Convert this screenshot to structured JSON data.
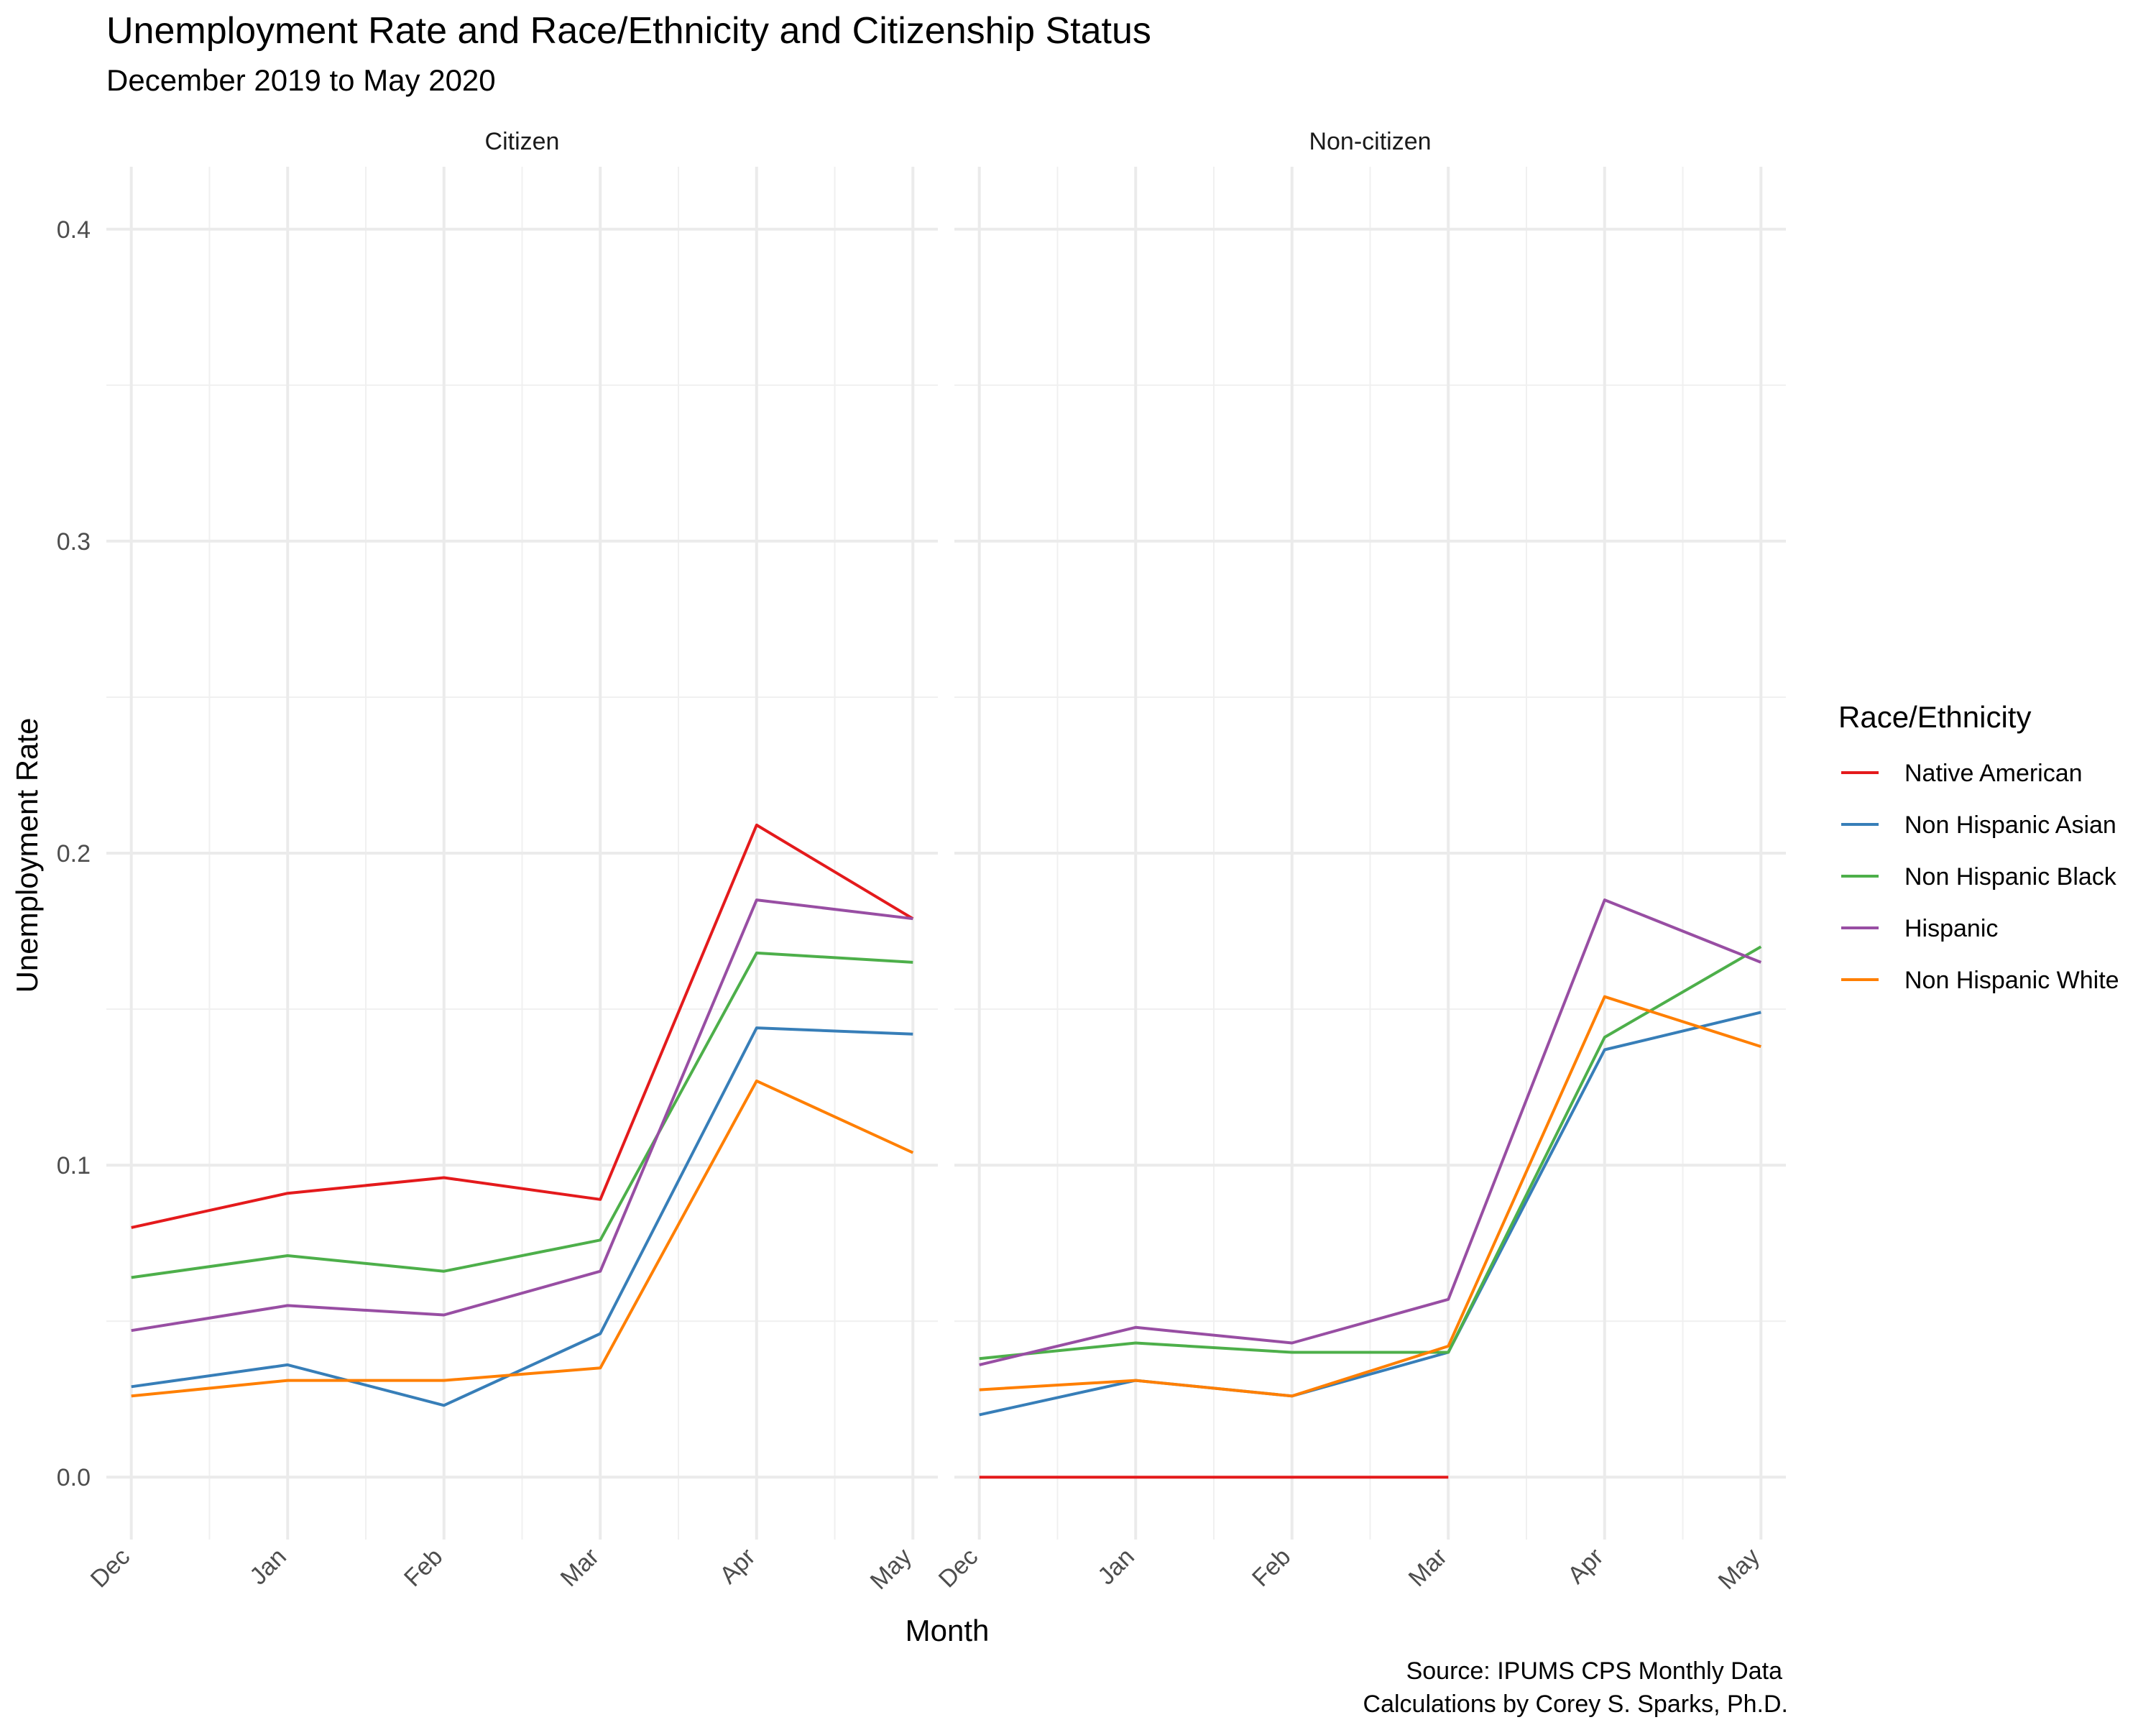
{
  "chart_data": {
    "type": "line",
    "title": "Unemployment Rate and Race/Ethnicity and Citizenship Status",
    "subtitle": "December 2019 to May 2020",
    "xlabel": "Month",
    "ylabel": "Unemployment Rate",
    "caption_lines": [
      "Source: IPUMS CPS Monthly Data",
      "Calculations by Corey S. Sparks, Ph.D."
    ],
    "categories": [
      "Dec",
      "Jan",
      "Feb",
      "Mar",
      "Apr",
      "May"
    ],
    "ylim": [
      -0.02,
      0.42
    ],
    "yticks": [
      0.0,
      0.1,
      0.2,
      0.3,
      0.4
    ],
    "ytick_labels": [
      "0.0",
      "0.1",
      "0.2",
      "0.3",
      "0.4"
    ],
    "grid": true,
    "legend": {
      "title": "Race/Ethnicity",
      "placement": "right",
      "entries": [
        {
          "name": "Native American",
          "color": "#e41a1c"
        },
        {
          "name": "Non Hispanic Asian",
          "color": "#377eb8"
        },
        {
          "name": "Non Hispanic Black",
          "color": "#4daf4a"
        },
        {
          "name": "Hispanic",
          "color": "#984ea3"
        },
        {
          "name": "Non Hispanic White",
          "color": "#ff7f00"
        }
      ]
    },
    "panels": [
      {
        "label": "Citizen",
        "series": [
          {
            "name": "Native American",
            "values": [
              0.08,
              0.091,
              0.096,
              0.089,
              0.209,
              0.179
            ]
          },
          {
            "name": "Non Hispanic Asian",
            "values": [
              0.029,
              0.036,
              0.023,
              0.046,
              0.144,
              0.142
            ]
          },
          {
            "name": "Non Hispanic Black",
            "values": [
              0.064,
              0.071,
              0.066,
              0.076,
              0.168,
              0.165
            ]
          },
          {
            "name": "Hispanic",
            "values": [
              0.047,
              0.055,
              0.052,
              0.066,
              0.185,
              0.179
            ]
          },
          {
            "name": "Non Hispanic White",
            "values": [
              0.026,
              0.031,
              0.031,
              0.035,
              0.127,
              0.104
            ]
          }
        ]
      },
      {
        "label": "Non-citizen",
        "series": [
          {
            "name": "Native American",
            "values": [
              0.0,
              0.0,
              0.0,
              0.0,
              null,
              null
            ]
          },
          {
            "name": "Non Hispanic Asian",
            "values": [
              0.02,
              0.031,
              0.026,
              0.04,
              0.137,
              0.149
            ]
          },
          {
            "name": "Non Hispanic Black",
            "values": [
              0.038,
              0.043,
              0.04,
              0.04,
              0.141,
              0.17
            ]
          },
          {
            "name": "Hispanic",
            "values": [
              0.036,
              0.048,
              0.043,
              0.057,
              0.185,
              0.165
            ]
          },
          {
            "name": "Non Hispanic White",
            "values": [
              0.028,
              0.031,
              0.026,
              0.042,
              0.154,
              0.138
            ]
          }
        ]
      }
    ]
  }
}
